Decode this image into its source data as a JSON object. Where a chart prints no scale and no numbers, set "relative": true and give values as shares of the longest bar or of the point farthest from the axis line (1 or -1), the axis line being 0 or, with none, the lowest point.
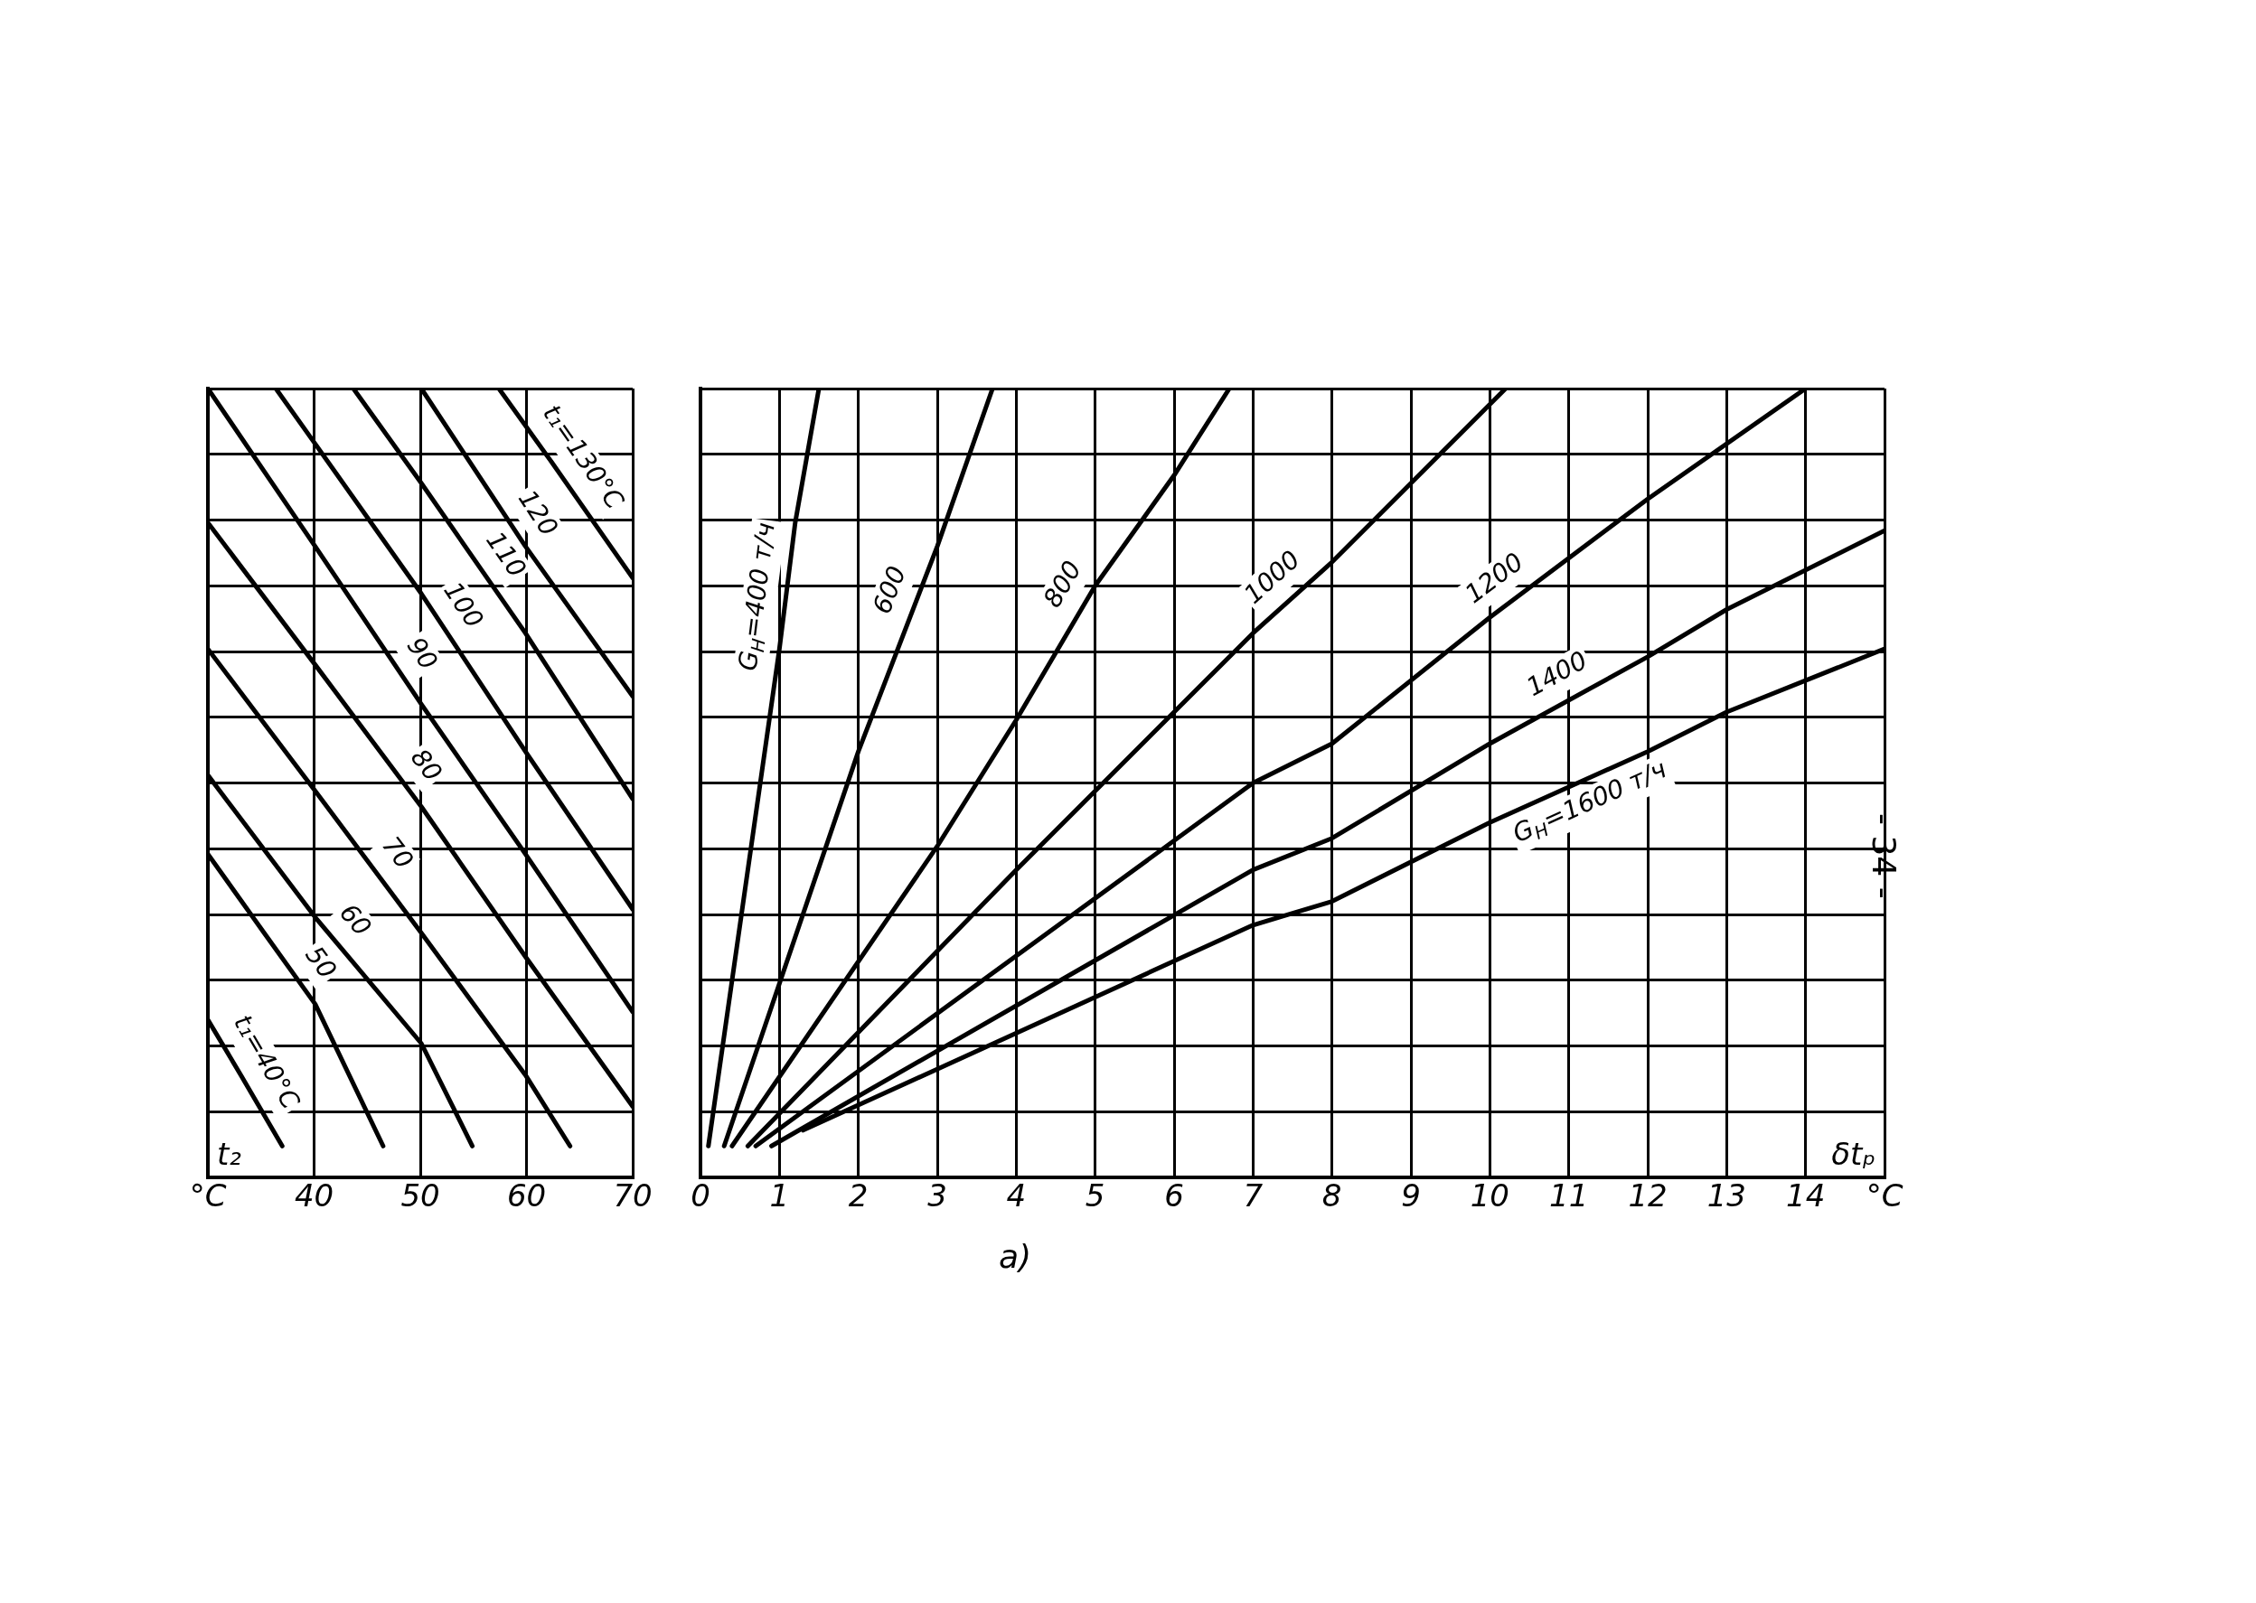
{
  "chart_data": [
    {
      "type": "line",
      "xlabel": "t₂",
      "relative": true,
      "grid": true,
      "legend": false,
      "marker": "none",
      "line_style": "solid",
      "xlim": [
        30,
        70
      ],
      "xticks": [
        {
          "value": 30,
          "label": "°C"
        },
        40,
        50,
        60,
        70
      ],
      "series": [
        {
          "name": "t₁=40°C",
          "color": "#000000",
          "x": [
            30,
            33.1,
            37
          ],
          "values": [
            0.2,
            0.13,
            0.04
          ]
        },
        {
          "name": "50",
          "color": "#000000",
          "x": [
            30,
            35.3,
            40.1,
            46.5
          ],
          "values": [
            0.41,
            0.31,
            0.22,
            0.04
          ]
        },
        {
          "name": "60",
          "color": "#000000",
          "x": [
            30,
            40.1,
            50.1,
            54.9
          ],
          "values": [
            0.51,
            0.33,
            0.17,
            0.04
          ]
        },
        {
          "name": "70",
          "color": "#000000",
          "x": [
            30,
            40.1,
            50.1,
            59.9,
            64.1
          ],
          "values": [
            0.67,
            0.49,
            0.31,
            0.13,
            0.04
          ]
        },
        {
          "name": "80",
          "color": "#000000",
          "x": [
            30,
            40.1,
            50.1,
            59.9,
            70
          ],
          "values": [
            0.83,
            0.65,
            0.47,
            0.28,
            0.09
          ]
        },
        {
          "name": "90",
          "color": "#000000",
          "x": [
            30,
            40.1,
            50.1,
            59.9,
            70
          ],
          "values": [
            1,
            0.8,
            0.6,
            0.41,
            0.21
          ]
        },
        {
          "name": "100",
          "color": "#000000",
          "x": [
            36.4,
            40.1,
            50.1,
            59.9,
            70
          ],
          "values": [
            1,
            0.93,
            0.74,
            0.54,
            0.34
          ]
        },
        {
          "name": "110",
          "color": "#000000",
          "x": [
            43.7,
            50.1,
            59.9,
            70
          ],
          "values": [
            1,
            0.88,
            0.69,
            0.48
          ]
        },
        {
          "name": "120",
          "color": "#000000",
          "x": [
            50.1,
            59.9,
            70
          ],
          "values": [
            1,
            0.8,
            0.61
          ]
        },
        {
          "name": "t₁=130°C",
          "color": "#000000",
          "x": [
            57.4,
            62.2,
            70
          ],
          "values": [
            1,
            0.91,
            0.76
          ]
        }
      ]
    },
    {
      "type": "line",
      "xlabel": "δtₚ",
      "relative": true,
      "grid": true,
      "legend": false,
      "marker": "none",
      "line_style": "solid",
      "xlim": [
        0,
        15
      ],
      "xticks": [
        0,
        1,
        2,
        3,
        4,
        5,
        6,
        7,
        8,
        9,
        10,
        11,
        12,
        13,
        14,
        {
          "value": 15,
          "label": "°C"
        }
      ],
      "annotations": [
        "а)",
        "- 34 -"
      ],
      "series": [
        {
          "name": "G$_{Н}$=400 т/ч",
          "color": "#000000",
          "x": [
            0.1,
            1.0,
            1.2,
            1.5
          ],
          "values": [
            0.04,
            0.67,
            0.83,
            1
          ]
        },
        {
          "name": "600",
          "color": "#000000",
          "x": [
            0.3,
            2.0,
            3.0,
            3.7
          ],
          "values": [
            0.04,
            0.54,
            0.8,
            1
          ]
        },
        {
          "name": "800",
          "color": "#000000",
          "x": [
            0.4,
            3.0,
            4.0,
            5.0,
            6.0,
            6.7
          ],
          "values": [
            0.04,
            0.42,
            0.58,
            0.75,
            0.89,
            1
          ]
        },
        {
          "name": "1000",
          "color": "#000000",
          "x": [
            0.6,
            4.0,
            7.0,
            8.0,
            9.0,
            10.2
          ],
          "values": [
            0.04,
            0.39,
            0.69,
            0.78,
            0.88,
            1
          ]
        },
        {
          "name": "1200",
          "color": "#000000",
          "x": [
            0.7,
            7.0,
            8.0,
            10.0,
            12.0,
            14.0
          ],
          "values": [
            0.04,
            0.5,
            0.55,
            0.71,
            0.86,
            1
          ]
        },
        {
          "name": "1400",
          "color": "#000000",
          "x": [
            0.9,
            7.0,
            8.0,
            10.0,
            12.0,
            13.0,
            15.0
          ],
          "values": [
            0.04,
            0.39,
            0.43,
            0.55,
            0.66,
            0.72,
            0.82
          ]
        },
        {
          "name": "G$_{Н}$=1600 т/ч",
          "color": "#000000",
          "x": [
            1.3,
            7.0,
            8.0,
            10.0,
            12.0,
            13.0,
            15.0
          ],
          "values": [
            0.06,
            0.32,
            0.35,
            0.45,
            0.54,
            0.59,
            0.67
          ]
        }
      ]
    }
  ]
}
